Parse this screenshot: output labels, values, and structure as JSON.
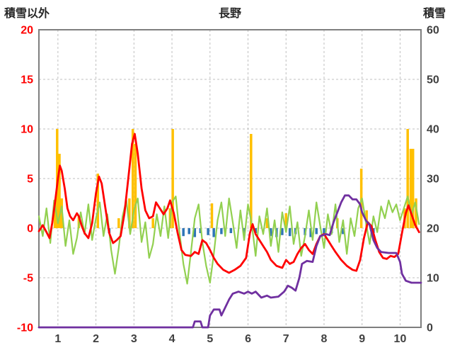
{
  "header": {
    "left_label": "積雪以外",
    "title": "長野",
    "right_label": "積雪"
  },
  "chart_data": {
    "type": "line",
    "title": "長野",
    "legend": false,
    "grid": true,
    "left_axis": {
      "label": "積雪以外",
      "min": -10,
      "max": 20,
      "ticks": [
        20,
        15,
        10,
        5,
        0,
        -5,
        -10
      ],
      "color": "#FF0000"
    },
    "right_axis": {
      "label": "積雪",
      "min": 0,
      "max": 60,
      "ticks": [
        60,
        50,
        40,
        30,
        20,
        10,
        0
      ],
      "color": "#404040"
    },
    "x_axis": {
      "ticks": [
        1,
        2,
        3,
        4,
        5,
        6,
        7,
        8,
        9,
        10
      ],
      "range": [
        0.5,
        10.55
      ],
      "color": "#404040"
    },
    "style": {
      "grid_color": "#BFBFBF",
      "border_color": "#7F7F7F",
      "red_line": "#FF0000",
      "green_line": "#92D050",
      "purple_line": "#7030A0",
      "orange_bar": "#FFC000",
      "blue_bar": "#2E75B6"
    },
    "series": [
      {
        "name": "orange-bars",
        "kind": "bar",
        "color": "#FFC000",
        "bars": [
          {
            "x": 0.92,
            "h": 2.5
          },
          {
            "x": 0.98,
            "h": 10
          },
          {
            "x": 1.04,
            "h": 7.5
          },
          {
            "x": 1.1,
            "h": 3
          },
          {
            "x": 1.55,
            "h": 1.2
          },
          {
            "x": 2.05,
            "h": 5.5
          },
          {
            "x": 2.6,
            "h": 1
          },
          {
            "x": 2.88,
            "h": 3
          },
          {
            "x": 2.97,
            "h": 10
          },
          {
            "x": 3.04,
            "h": 8.5
          },
          {
            "x": 3.5,
            "h": 1
          },
          {
            "x": 3.95,
            "h": 2
          },
          {
            "x": 4.02,
            "h": 10
          },
          {
            "x": 5.05,
            "h": 2.5
          },
          {
            "x": 6.08,
            "h": 9.5
          },
          {
            "x": 6.5,
            "h": 1
          },
          {
            "x": 7.0,
            "h": 1.5
          },
          {
            "x": 8.35,
            "h": 1
          },
          {
            "x": 8.98,
            "h": 6
          },
          {
            "x": 9.12,
            "h": 1.8
          },
          {
            "x": 10.12,
            "h": 2
          },
          {
            "x": 10.2,
            "h": 10
          },
          {
            "x": 10.28,
            "h": 8
          },
          {
            "x": 10.34,
            "h": 8
          },
          {
            "x": 10.42,
            "h": 3
          }
        ]
      },
      {
        "name": "blue-bars",
        "kind": "bar",
        "color": "#2E75B6",
        "bars": [
          {
            "x": 2.35,
            "h": -0.5
          },
          {
            "x": 4.3,
            "h": -0.8
          },
          {
            "x": 4.45,
            "h": -0.6
          },
          {
            "x": 4.6,
            "h": -0.9
          },
          {
            "x": 4.75,
            "h": -0.5
          },
          {
            "x": 4.95,
            "h": -0.7
          },
          {
            "x": 5.1,
            "h": -0.9
          },
          {
            "x": 5.3,
            "h": -0.6
          },
          {
            "x": 5.55,
            "h": -0.5
          },
          {
            "x": 5.9,
            "h": -0.6
          },
          {
            "x": 6.2,
            "h": -0.5
          },
          {
            "x": 6.6,
            "h": -0.8
          },
          {
            "x": 6.75,
            "h": -0.9
          },
          {
            "x": 6.9,
            "h": -0.7
          },
          {
            "x": 7.1,
            "h": -0.8
          },
          {
            "x": 7.25,
            "h": -0.6
          },
          {
            "x": 7.5,
            "h": -0.7
          },
          {
            "x": 7.65,
            "h": -0.9
          },
          {
            "x": 7.8,
            "h": -0.6
          },
          {
            "x": 8.0,
            "h": -0.8
          },
          {
            "x": 8.2,
            "h": -0.5
          },
          {
            "x": 8.5,
            "h": -0.6
          },
          {
            "x": 9.3,
            "h": -0.5
          }
        ]
      },
      {
        "name": "green-line",
        "kind": "line",
        "color": "#92D050",
        "width": 2.2,
        "x0": 0.5,
        "dx": 0.1,
        "values": [
          1.2,
          -0.8,
          2.0,
          -1.5,
          2.8,
          0.5,
          2.2,
          -1.8,
          0.8,
          -2.6,
          -1.0,
          1.6,
          -0.6,
          2.4,
          -1.2,
          1.0,
          2.6,
          -0.8,
          1.4,
          -2.2,
          -4.6,
          -2.0,
          1.2,
          2.8,
          -0.6,
          1.8,
          3.0,
          -1.4,
          0.6,
          -3.0,
          -1.6,
          1.4,
          -0.8,
          2.2,
          -1.0,
          2.6,
          3.2,
          -0.5,
          -3.6,
          -5.6,
          -2.4,
          1.0,
          2.4,
          -1.4,
          -3.8,
          -5.5,
          -2.6,
          0.8,
          2.6,
          -0.8,
          3.0,
          0.6,
          -2.0,
          1.8,
          -1.2,
          2.4,
          0.4,
          -2.8,
          1.2,
          -0.6,
          2.0,
          -1.8,
          0.8,
          -2.4,
          1.6,
          -0.4,
          2.2,
          -1.6,
          0.6,
          -2.8,
          -0.8,
          1.8,
          -1.2,
          2.6,
          0.2,
          -2.0,
          1.4,
          -0.6,
          2.4,
          -1.4,
          0.8,
          -2.6,
          1.0,
          -0.8,
          2.0,
          3.0,
          0.6,
          -1.6,
          1.2,
          -0.4,
          2.2,
          1.0,
          2.8,
          1.6,
          2.4,
          0.8,
          2.0,
          3.2,
          1.4,
          2.6,
          0.4
        ]
      },
      {
        "name": "red-line",
        "kind": "line",
        "color": "#FF0000",
        "width": 2.8,
        "points": [
          [
            0.5,
            -0.3
          ],
          [
            0.6,
            0.3
          ],
          [
            0.7,
            -0.4
          ],
          [
            0.78,
            -1.0
          ],
          [
            0.85,
            0.5
          ],
          [
            0.92,
            2.5
          ],
          [
            1.0,
            5.0
          ],
          [
            1.05,
            6.3
          ],
          [
            1.1,
            5.8
          ],
          [
            1.18,
            4.0
          ],
          [
            1.25,
            2.0
          ],
          [
            1.32,
            1.2
          ],
          [
            1.4,
            0.8
          ],
          [
            1.5,
            1.5
          ],
          [
            1.55,
            1.2
          ],
          [
            1.62,
            0.3
          ],
          [
            1.7,
            -0.5
          ],
          [
            1.8,
            -1.0
          ],
          [
            1.9,
            0.5
          ],
          [
            2.0,
            3.5
          ],
          [
            2.08,
            5.2
          ],
          [
            2.15,
            4.5
          ],
          [
            2.25,
            2.0
          ],
          [
            2.35,
            -0.5
          ],
          [
            2.45,
            -1.5
          ],
          [
            2.55,
            -1.2
          ],
          [
            2.65,
            -0.8
          ],
          [
            2.75,
            1.5
          ],
          [
            2.85,
            5.0
          ],
          [
            2.95,
            8.5
          ],
          [
            3.02,
            9.5
          ],
          [
            3.1,
            7.5
          ],
          [
            3.2,
            4.0
          ],
          [
            3.3,
            1.8
          ],
          [
            3.4,
            1.0
          ],
          [
            3.5,
            1.2
          ],
          [
            3.58,
            2.6
          ],
          [
            3.68,
            2.0
          ],
          [
            3.78,
            1.4
          ],
          [
            3.88,
            2.0
          ],
          [
            3.95,
            2.8
          ],
          [
            4.05,
            1.5
          ],
          [
            4.15,
            -0.5
          ],
          [
            4.25,
            -2.2
          ],
          [
            4.35,
            -2.7
          ],
          [
            4.5,
            -2.8
          ],
          [
            4.6,
            -2.4
          ],
          [
            4.7,
            -2.6
          ],
          [
            4.8,
            -1.2
          ],
          [
            4.9,
            -1.5
          ],
          [
            5.0,
            -2.2
          ],
          [
            5.1,
            -3.0
          ],
          [
            5.2,
            -3.6
          ],
          [
            5.35,
            -4.2
          ],
          [
            5.5,
            -4.5
          ],
          [
            5.65,
            -4.2
          ],
          [
            5.8,
            -3.8
          ],
          [
            5.95,
            -3.0
          ],
          [
            6.05,
            -0.5
          ],
          [
            6.12,
            0.4
          ],
          [
            6.2,
            -0.6
          ],
          [
            6.3,
            -1.2
          ],
          [
            6.4,
            -1.8
          ],
          [
            6.5,
            -2.4
          ],
          [
            6.6,
            -3.2
          ],
          [
            6.75,
            -3.8
          ],
          [
            6.9,
            -4.0
          ],
          [
            7.0,
            -3.2
          ],
          [
            7.1,
            -3.6
          ],
          [
            7.2,
            -3.4
          ],
          [
            7.3,
            -2.6
          ],
          [
            7.4,
            -2.0
          ],
          [
            7.5,
            -1.6
          ],
          [
            7.6,
            -2.2
          ],
          [
            7.7,
            -2.6
          ],
          [
            7.8,
            -1.6
          ],
          [
            7.9,
            -0.8
          ],
          [
            8.0,
            -0.6
          ],
          [
            8.1,
            -1.2
          ],
          [
            8.2,
            -1.8
          ],
          [
            8.3,
            -2.4
          ],
          [
            8.45,
            -3.2
          ],
          [
            8.6,
            -3.8
          ],
          [
            8.75,
            -4.2
          ],
          [
            8.85,
            -4.3
          ],
          [
            8.95,
            -3.2
          ],
          [
            9.05,
            -1.0
          ],
          [
            9.15,
            0.6
          ],
          [
            9.25,
            0.2
          ],
          [
            9.35,
            -1.2
          ],
          [
            9.45,
            -2.4
          ],
          [
            9.55,
            -3.0
          ],
          [
            9.65,
            -3.1
          ],
          [
            9.75,
            -2.8
          ],
          [
            9.85,
            -2.9
          ],
          [
            9.95,
            -2.6
          ],
          [
            10.05,
            -0.5
          ],
          [
            10.15,
            1.5
          ],
          [
            10.22,
            2.3
          ],
          [
            10.3,
            1.4
          ],
          [
            10.4,
            0.3
          ],
          [
            10.5,
            -0.4
          ]
        ]
      },
      {
        "name": "purple-line",
        "kind": "line",
        "color": "#7030A0",
        "width": 2.8,
        "points": [
          [
            0.5,
            -10
          ],
          [
            4.55,
            -10
          ],
          [
            4.6,
            -9.4
          ],
          [
            4.75,
            -9.4
          ],
          [
            4.8,
            -10
          ],
          [
            4.95,
            -10
          ],
          [
            5.0,
            -8.8
          ],
          [
            5.1,
            -8.2
          ],
          [
            5.25,
            -8.2
          ],
          [
            5.3,
            -8.8
          ],
          [
            5.4,
            -8.0
          ],
          [
            5.5,
            -7.2
          ],
          [
            5.6,
            -6.6
          ],
          [
            5.75,
            -6.4
          ],
          [
            5.9,
            -6.6
          ],
          [
            6.0,
            -6.4
          ],
          [
            6.1,
            -6.6
          ],
          [
            6.2,
            -6.4
          ],
          [
            6.35,
            -7.0
          ],
          [
            6.5,
            -6.8
          ],
          [
            6.6,
            -7.0
          ],
          [
            6.8,
            -6.9
          ],
          [
            6.95,
            -6.4
          ],
          [
            7.05,
            -5.8
          ],
          [
            7.15,
            -6.0
          ],
          [
            7.25,
            -6.3
          ],
          [
            7.35,
            -5.0
          ],
          [
            7.42,
            -3.6
          ],
          [
            7.55,
            -3.3
          ],
          [
            7.7,
            -3.4
          ],
          [
            7.8,
            -1.8
          ],
          [
            7.9,
            -0.8
          ],
          [
            8.05,
            -0.6
          ],
          [
            8.15,
            -0.7
          ],
          [
            8.25,
            0.6
          ],
          [
            8.35,
            1.6
          ],
          [
            8.45,
            2.6
          ],
          [
            8.55,
            3.3
          ],
          [
            8.65,
            3.3
          ],
          [
            8.75,
            2.9
          ],
          [
            8.85,
            2.9
          ],
          [
            8.95,
            2.4
          ],
          [
            9.0,
            1.6
          ],
          [
            9.1,
            0.8
          ],
          [
            9.2,
            0.3
          ],
          [
            9.3,
            -1.2
          ],
          [
            9.4,
            -2.0
          ],
          [
            9.5,
            -2.4
          ],
          [
            9.7,
            -2.5
          ],
          [
            9.9,
            -2.5
          ],
          [
            10.0,
            -3.4
          ],
          [
            10.05,
            -4.6
          ],
          [
            10.15,
            -5.3
          ],
          [
            10.3,
            -5.5
          ],
          [
            10.55,
            -5.5
          ]
        ]
      }
    ]
  }
}
